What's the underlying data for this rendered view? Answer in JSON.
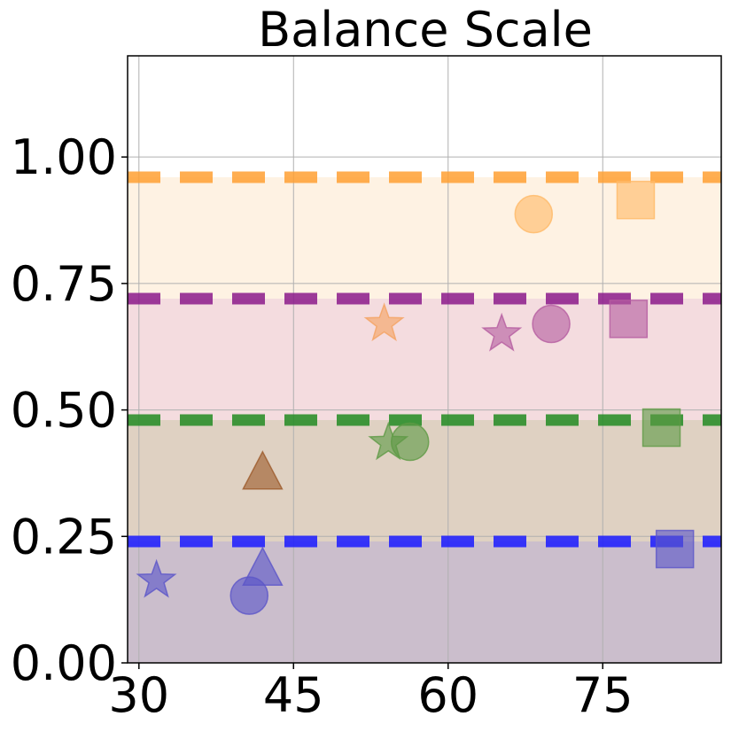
{
  "chart_data": {
    "type": "scatter",
    "title": "Balance Scale",
    "xlabel": "",
    "ylabel": "",
    "xlim": [
      28.9,
      86.5
    ],
    "ylim": [
      0,
      1.2
    ],
    "xticks": [
      30,
      45,
      60,
      75
    ],
    "yticks": [
      0.0,
      0.25,
      0.5,
      0.75,
      1.0
    ],
    "xtick_labels": [
      "30",
      "45",
      "60",
      "75"
    ],
    "ytick_labels": [
      "0.00",
      "0.25",
      "0.50",
      "0.75",
      "1.00"
    ],
    "grid": true,
    "bands": [
      {
        "from": 0.0,
        "to": 0.24,
        "color": "#8b6f8e"
      },
      {
        "from": 0.24,
        "to": 0.48,
        "color": "#b99a78"
      },
      {
        "from": 0.48,
        "to": 0.72,
        "color": "#e6b2b8"
      },
      {
        "from": 0.72,
        "to": 0.96,
        "color": "#fde2c0"
      }
    ],
    "thresholds": [
      {
        "y": 0.24,
        "color": "#1a1aff"
      },
      {
        "y": 0.48,
        "color": "#228b22"
      },
      {
        "y": 0.72,
        "color": "#8b1a8b"
      },
      {
        "y": 0.96,
        "color": "#ffa033"
      }
    ],
    "points": [
      {
        "x": 31.7,
        "y": 0.163,
        "marker": "star",
        "color": "#5b55c8"
      },
      {
        "x": 40.7,
        "y": 0.133,
        "marker": "circle",
        "color": "#5b55c8"
      },
      {
        "x": 42.0,
        "y": 0.18,
        "marker": "triangle",
        "color": "#5b55c8"
      },
      {
        "x": 82.0,
        "y": 0.225,
        "marker": "square",
        "color": "#5b55c8"
      },
      {
        "x": 42.0,
        "y": 0.37,
        "marker": "triangle",
        "color": "#9c5a2a"
      },
      {
        "x": 54.2,
        "y": 0.435,
        "marker": "star",
        "color": "#5e9a45"
      },
      {
        "x": 56.3,
        "y": 0.437,
        "marker": "circle",
        "color": "#5e9a45"
      },
      {
        "x": 80.7,
        "y": 0.465,
        "marker": "square",
        "color": "#5e9a45"
      },
      {
        "x": 53.8,
        "y": 0.67,
        "marker": "star",
        "color": "#f4a261"
      },
      {
        "x": 65.2,
        "y": 0.65,
        "marker": "star",
        "color": "#b55da0"
      },
      {
        "x": 70.0,
        "y": 0.67,
        "marker": "circle",
        "color": "#b55da0"
      },
      {
        "x": 77.5,
        "y": 0.68,
        "marker": "square",
        "color": "#b55da0"
      },
      {
        "x": 68.3,
        "y": 0.887,
        "marker": "circle",
        "color": "#ffb967"
      },
      {
        "x": 78.2,
        "y": 0.915,
        "marker": "square",
        "color": "#ffb967"
      }
    ]
  }
}
